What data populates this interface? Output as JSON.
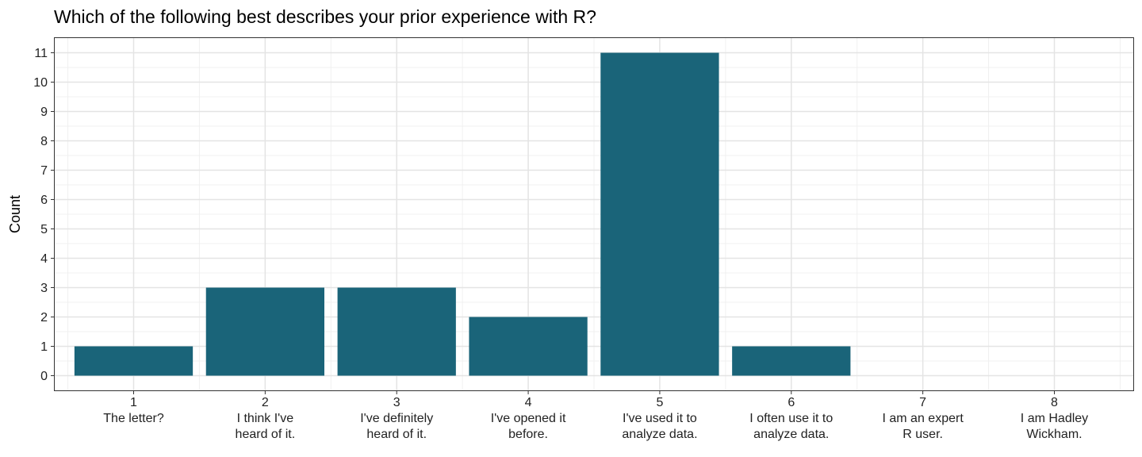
{
  "chart_data": {
    "type": "bar",
    "title": "Which of the following best describes your prior experience with R?",
    "xlabel": "",
    "ylabel": "Count",
    "categories": [
      [
        "1",
        "The letter?"
      ],
      [
        "2",
        "I think I've",
        "heard of it."
      ],
      [
        "3",
        "I've definitely",
        "heard of it."
      ],
      [
        "4",
        "I've opened it",
        "before."
      ],
      [
        "5",
        "I've used it to",
        "analyze data."
      ],
      [
        "6",
        "I often use it to",
        "analyze data."
      ],
      [
        "7",
        "I am an expert",
        "R user."
      ],
      [
        "8",
        "I am Hadley",
        "Wickham."
      ]
    ],
    "values": [
      1,
      3,
      3,
      2,
      11,
      1,
      0,
      0
    ],
    "ylim": [
      -0.5,
      11.5
    ],
    "yticks": [
      0,
      1,
      2,
      3,
      4,
      5,
      6,
      7,
      8,
      9,
      10,
      11
    ],
    "grid": true,
    "bar_color": "#1a6479"
  }
}
